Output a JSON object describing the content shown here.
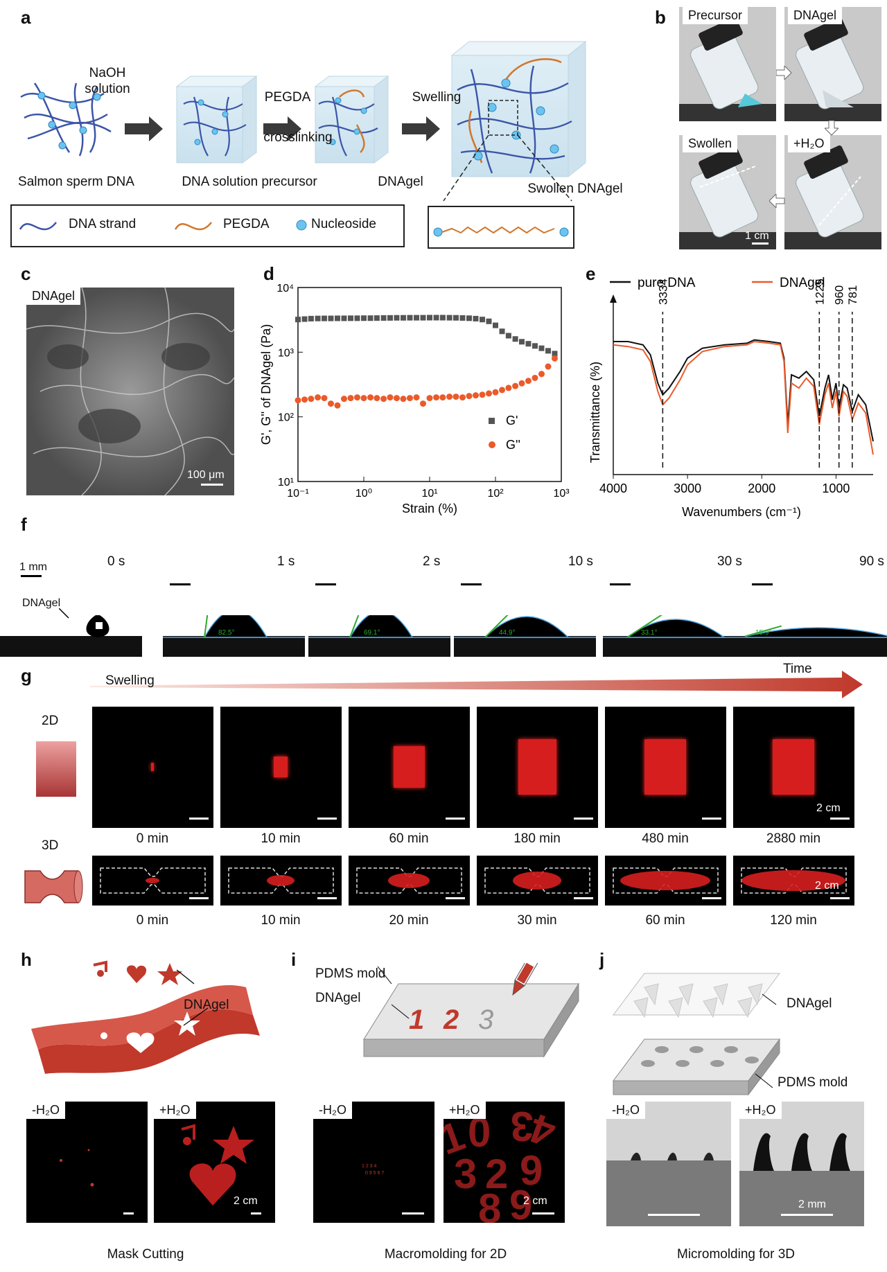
{
  "panels": [
    "a",
    "b",
    "c",
    "d",
    "e",
    "f",
    "g",
    "h",
    "i",
    "j"
  ],
  "panel_a": {
    "steps": [
      "Salmon sperm DNA",
      "DNA solution precursor",
      "DNAgel",
      "Swollen DNAgel"
    ],
    "arrow1": [
      "NaOH",
      "solution"
    ],
    "arrow2_top": "PEGDA",
    "arrow2_bottom": "crosslinking",
    "arrow3": "Swelling",
    "legend": [
      "DNA  strand",
      "PEGDA",
      "Nucleoside"
    ]
  },
  "panel_b": {
    "labels": [
      "Precursor",
      "DNAgel",
      "Swollen",
      "+H₂O"
    ],
    "scale": "1 cm"
  },
  "panel_c": {
    "tag": "DNAgel",
    "scale": "100 μm"
  },
  "panel_d": {
    "ylabel": "G', G'' of DNAgel (Pa)",
    "xlabel": "Strain (%)",
    "legend": [
      "G'",
      "G''"
    ],
    "xticks": [
      "10⁻¹",
      "10⁰",
      "10¹",
      "10²",
      "10³"
    ],
    "yticks": [
      "10¹",
      "10²",
      "10³",
      "10⁴"
    ]
  },
  "panel_e": {
    "legend": [
      "pure DNA",
      "DNAgel"
    ],
    "ylabel": "Transmittance (%)",
    "xlabel": "Wavenumbers (cm⁻¹)",
    "xticks": [
      "4000",
      "3000",
      "2000",
      "1000"
    ],
    "peaks": [
      "3334",
      "1225",
      "960",
      "781"
    ]
  },
  "panel_f": {
    "scale": "1 mm",
    "substrate": "DNAgel",
    "times": [
      "0 s",
      "1 s",
      "2 s",
      "10 s",
      "30 s",
      "90 s"
    ],
    "angles": [
      "82.5°",
      "69.1°",
      "44.9°",
      "33.1°",
      "15.9°"
    ]
  },
  "panel_g": {
    "swelling": "Swelling",
    "time": "Time",
    "row2d": "2D",
    "row3d": "3D",
    "times2d": [
      "0 min",
      "10 min",
      "60 min",
      "180 min",
      "480 min",
      "2880 min"
    ],
    "times3d": [
      "0 min",
      "10 min",
      "20 min",
      "30 min",
      "60 min",
      "120 min"
    ],
    "scale": "2 cm"
  },
  "panel_h": {
    "label": "DNAgel",
    "minus": "-H₂O",
    "plus": "+H₂O",
    "scale": "2 cm",
    "caption": "Mask Cutting"
  },
  "panel_i": {
    "mold": "PDMS mold",
    "gel": "DNAgel",
    "minus": "-H₂O",
    "plus": "+H₂O",
    "scale": "2 cm",
    "caption": "Macromolding for 2D",
    "digits": [
      "1",
      "2",
      "3"
    ]
  },
  "panel_j": {
    "gel": "DNAgel",
    "mold": "PDMS mold",
    "minus": "-H₂O",
    "plus": "+H₂O",
    "scale": "2 mm",
    "caption": "Micromolding for 3D"
  },
  "chart_data": [
    {
      "type": "scatter",
      "xlabel": "Strain (%)",
      "ylabel": "G', G'' of DNAgel (Pa)",
      "xscale": "log",
      "yscale": "log",
      "xlim": [
        0.1,
        1000
      ],
      "ylim": [
        10,
        10000
      ],
      "x": [
        0.1,
        0.126,
        0.158,
        0.2,
        0.251,
        0.316,
        0.398,
        0.501,
        0.631,
        0.794,
        1,
        1.26,
        1.58,
        2,
        2.51,
        3.16,
        3.98,
        5.01,
        6.31,
        7.94,
        10,
        12.6,
        15.8,
        20,
        25.1,
        31.6,
        39.8,
        50.1,
        63.1,
        79.4,
        100,
        126,
        158,
        200,
        251,
        316,
        398,
        501,
        631,
        794
      ],
      "series": [
        {
          "name": "G'",
          "values": [
            3200,
            3250,
            3300,
            3320,
            3330,
            3330,
            3340,
            3340,
            3350,
            3350,
            3360,
            3360,
            3370,
            3380,
            3390,
            3400,
            3400,
            3410,
            3410,
            3410,
            3420,
            3420,
            3420,
            3410,
            3400,
            3380,
            3350,
            3300,
            3200,
            3000,
            2600,
            2100,
            1800,
            1600,
            1450,
            1350,
            1250,
            1150,
            1050,
            950
          ]
        },
        {
          "name": "G''",
          "values": [
            180,
            185,
            190,
            200,
            195,
            160,
            150,
            190,
            195,
            200,
            195,
            200,
            195,
            190,
            200,
            195,
            190,
            195,
            200,
            160,
            195,
            200,
            200,
            205,
            205,
            200,
            210,
            215,
            220,
            230,
            240,
            260,
            280,
            300,
            330,
            360,
            400,
            460,
            600,
            800
          ]
        }
      ]
    },
    {
      "type": "line",
      "xlabel": "Wavenumbers (cm⁻¹)",
      "ylabel": "Transmittance (%)",
      "xlim": [
        4000,
        500
      ],
      "x": [
        4000,
        3800,
        3600,
        3500,
        3400,
        3334,
        3250,
        3100,
        3000,
        2800,
        2500,
        2200,
        2100,
        1900,
        1750,
        1700,
        1650,
        1600,
        1500,
        1400,
        1300,
        1225,
        1150,
        1100,
        1050,
        1000,
        960,
        900,
        850,
        781,
        700,
        600,
        500
      ],
      "series": [
        {
          "name": "pure DNA",
          "values": [
            80,
            80,
            78,
            72,
            55,
            48,
            52,
            62,
            70,
            76,
            78,
            79,
            81,
            80,
            79,
            70,
            30,
            60,
            58,
            62,
            57,
            35,
            52,
            60,
            45,
            55,
            40,
            54,
            52,
            38,
            48,
            42,
            20
          ]
        },
        {
          "name": "DNAgel",
          "values": [
            78,
            77,
            75,
            68,
            50,
            42,
            46,
            57,
            66,
            74,
            77,
            78,
            80,
            79,
            78,
            68,
            25,
            55,
            52,
            58,
            53,
            30,
            48,
            55,
            40,
            50,
            35,
            50,
            47,
            33,
            43,
            37,
            12
          ]
        }
      ]
    }
  ]
}
